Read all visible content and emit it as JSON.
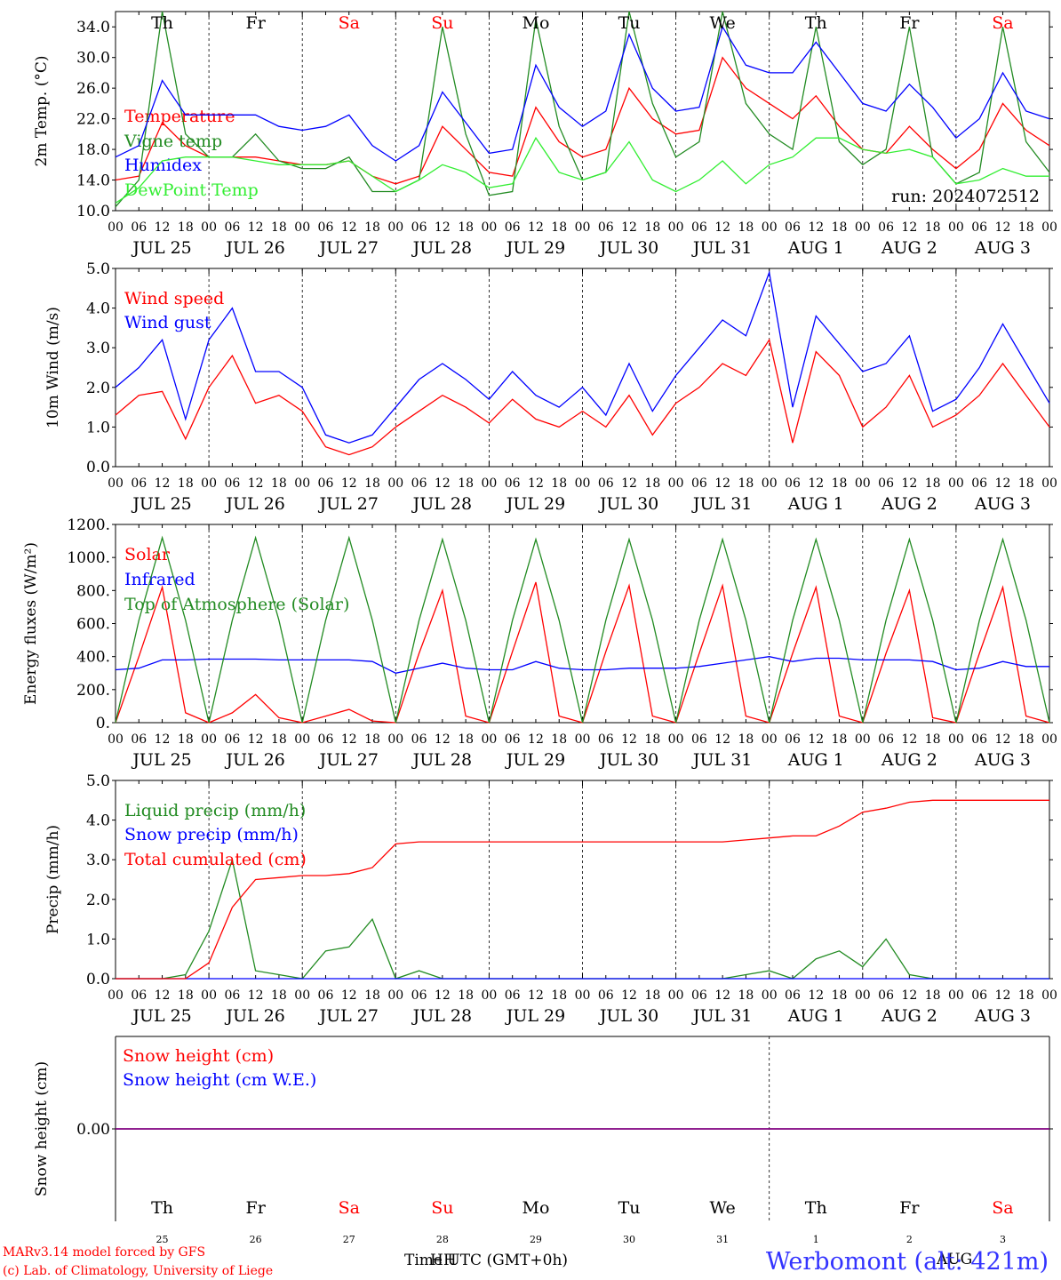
{
  "run_label": "run: 2024072512",
  "footer": {
    "model_line1": "MARv3.14 model forced by GFS",
    "model_line2": "(c) Lab. of Climatology, University of Liege",
    "xlabel": "Time UTC (GMT+0h)",
    "overlap_text": "HH",
    "overlap_text2": "AUG",
    "station": "Werbomont (alt: 421m)"
  },
  "days": [
    {
      "name": "Th",
      "date": "JUL 25",
      "num": "25",
      "weekend": false
    },
    {
      "name": "Fr",
      "date": "JUL 26",
      "num": "26",
      "weekend": false
    },
    {
      "name": "Sa",
      "date": "JUL 27",
      "num": "27",
      "weekend": true
    },
    {
      "name": "Su",
      "date": "JUL 28",
      "num": "28",
      "weekend": true
    },
    {
      "name": "Mo",
      "date": "JUL 29",
      "num": "29",
      "weekend": false
    },
    {
      "name": "Tu",
      "date": "JUL 30",
      "num": "30",
      "weekend": false
    },
    {
      "name": "We",
      "date": "JUL 31",
      "num": "31",
      "weekend": false
    },
    {
      "name": "Th",
      "date": "AUG  1",
      "num": "1",
      "weekend": false
    },
    {
      "name": "Fr",
      "date": "AUG  2",
      "num": "2",
      "weekend": false
    },
    {
      "name": "Sa",
      "date": "AUG  3",
      "num": "3",
      "weekend": true
    }
  ],
  "hour_labels": [
    "00",
    "06",
    "12",
    "18"
  ],
  "colors": {
    "red": "#ff0000",
    "green": "#228b22",
    "blue": "#0000ff",
    "lightgreen": "#33ee33",
    "purple": "#800080"
  },
  "chart_data": [
    {
      "type": "line",
      "ylabel": "2m Temp. (°C)",
      "ylim": [
        10,
        36
      ],
      "ticks": [
        "10.0",
        "14.0",
        "18.0",
        "22.0",
        "26.0",
        "30.0",
        "34.0"
      ],
      "x_hours": [
        0,
        6,
        12,
        18,
        24,
        30,
        36,
        42,
        48,
        54,
        60,
        66,
        72,
        78,
        84,
        90,
        96,
        102,
        108,
        114,
        120,
        126,
        132,
        138,
        144,
        150,
        156,
        162,
        168,
        174,
        180,
        186,
        192,
        198,
        204,
        210,
        216,
        222,
        228,
        234,
        240
      ],
      "series": [
        {
          "name": "Temperature",
          "color": "red",
          "values": [
            14.0,
            14.5,
            21.5,
            18.5,
            17.0,
            17.0,
            17.0,
            16.5,
            16.0,
            16.0,
            16.5,
            14.5,
            13.5,
            14.5,
            21.0,
            18.0,
            15.0,
            14.5,
            23.5,
            19.0,
            17.0,
            18.0,
            26.0,
            22.0,
            20.0,
            20.5,
            30.0,
            26.0,
            24.0,
            22.0,
            25.0,
            21.0,
            18.0,
            17.5,
            21.0,
            18.0,
            15.5,
            18.0,
            24.0,
            20.5,
            18.5
          ]
        },
        {
          "name": "Vigne temp",
          "color": "green",
          "values": [
            10.5,
            14.0,
            36.0,
            20.0,
            17.0,
            17.0,
            20.0,
            16.5,
            15.5,
            15.5,
            17.0,
            12.5,
            12.5,
            14.0,
            34.0,
            20.0,
            12.0,
            12.5,
            35.0,
            21.0,
            14.0,
            15.0,
            36.0,
            24.0,
            17.0,
            19.0,
            36.0,
            24.0,
            20.0,
            18.0,
            34.0,
            19.0,
            16.0,
            18.0,
            34.0,
            17.0,
            13.5,
            15.0,
            34.0,
            19.0,
            15.0
          ]
        },
        {
          "name": "Humidex",
          "color": "blue",
          "values": [
            17.0,
            18.5,
            27.0,
            22.5,
            22.5,
            22.5,
            22.5,
            21.0,
            20.5,
            21.0,
            22.5,
            18.5,
            16.5,
            18.5,
            25.5,
            21.5,
            17.5,
            18.0,
            29.0,
            23.5,
            21.0,
            23.0,
            33.0,
            26.0,
            23.0,
            23.5,
            34.0,
            29.0,
            28.0,
            28.0,
            32.0,
            28.0,
            24.0,
            23.0,
            26.5,
            23.5,
            19.5,
            22.0,
            28.0,
            23.0,
            22.0
          ]
        },
        {
          "name": "DewPoint Temp",
          "color": "lightgreen",
          "values": [
            11.0,
            13.0,
            16.5,
            17.0,
            17.0,
            17.0,
            16.5,
            16.0,
            16.0,
            16.0,
            16.5,
            14.5,
            12.5,
            14.0,
            16.0,
            15.0,
            13.0,
            13.5,
            19.5,
            15.0,
            14.0,
            15.0,
            19.0,
            14.0,
            12.5,
            14.0,
            16.5,
            13.5,
            16.0,
            17.0,
            19.5,
            19.5,
            18.0,
            17.5,
            18.0,
            17.0,
            13.5,
            14.0,
            15.5,
            14.5,
            14.5
          ]
        }
      ]
    },
    {
      "type": "line",
      "ylabel": "10m Wind (m/s)",
      "ylim": [
        0,
        5
      ],
      "ticks": [
        "0.0",
        "1.0",
        "2.0",
        "3.0",
        "4.0",
        "5.0"
      ],
      "x_hours": [
        0,
        6,
        12,
        18,
        24,
        30,
        36,
        42,
        48,
        54,
        60,
        66,
        72,
        78,
        84,
        90,
        96,
        102,
        108,
        114,
        120,
        126,
        132,
        138,
        144,
        150,
        156,
        162,
        168,
        174,
        180,
        186,
        192,
        198,
        204,
        210,
        216,
        222,
        228,
        234,
        240
      ],
      "series": [
        {
          "name": "Wind speed",
          "color": "red",
          "values": [
            1.3,
            1.8,
            1.9,
            0.7,
            2.0,
            2.8,
            1.6,
            1.8,
            1.4,
            0.5,
            0.3,
            0.5,
            1.0,
            1.4,
            1.8,
            1.5,
            1.1,
            1.7,
            1.2,
            1.0,
            1.4,
            1.0,
            1.8,
            0.8,
            1.6,
            2.0,
            2.6,
            2.3,
            3.2,
            0.6,
            2.9,
            2.3,
            1.0,
            1.5,
            2.3,
            1.0,
            1.3,
            1.8,
            2.6,
            1.8,
            1.0
          ]
        },
        {
          "name": "Wind gust",
          "color": "blue",
          "values": [
            2.0,
            2.5,
            3.2,
            1.2,
            3.2,
            4.0,
            2.4,
            2.4,
            2.0,
            0.8,
            0.6,
            0.8,
            1.5,
            2.2,
            2.6,
            2.2,
            1.7,
            2.4,
            1.8,
            1.5,
            2.0,
            1.3,
            2.6,
            1.4,
            2.3,
            3.0,
            3.7,
            3.3,
            4.9,
            1.5,
            3.8,
            3.1,
            2.4,
            2.6,
            3.3,
            1.4,
            1.7,
            2.5,
            3.6,
            2.6,
            1.6
          ]
        }
      ]
    },
    {
      "type": "line",
      "ylabel": "Energy fluxes (W/m²)",
      "ylim": [
        0,
        1200
      ],
      "ticks": [
        "0.",
        "200.",
        "400.",
        "600.",
        "800.",
        "1000.",
        "1200."
      ],
      "x_hours": [
        0,
        6,
        12,
        18,
        24,
        30,
        36,
        42,
        48,
        54,
        60,
        66,
        72,
        78,
        84,
        90,
        96,
        102,
        108,
        114,
        120,
        126,
        132,
        138,
        144,
        150,
        156,
        162,
        168,
        174,
        180,
        186,
        192,
        198,
        204,
        210,
        216,
        222,
        228,
        234,
        240
      ],
      "series": [
        {
          "name": "Solar",
          "color": "red",
          "values": [
            0,
            400,
            820,
            60,
            0,
            60,
            170,
            30,
            0,
            40,
            80,
            10,
            0,
            420,
            800,
            40,
            0,
            430,
            850,
            40,
            0,
            430,
            830,
            40,
            0,
            420,
            830,
            40,
            0,
            420,
            820,
            40,
            0,
            420,
            800,
            30,
            0,
            420,
            820,
            40,
            0
          ]
        },
        {
          "name": "Infrared",
          "color": "blue",
          "values": [
            320,
            330,
            380,
            380,
            385,
            385,
            385,
            380,
            380,
            380,
            380,
            370,
            300,
            330,
            360,
            330,
            320,
            320,
            370,
            330,
            320,
            320,
            330,
            330,
            330,
            340,
            360,
            380,
            400,
            370,
            390,
            390,
            380,
            380,
            380,
            370,
            320,
            330,
            370,
            340,
            340
          ]
        },
        {
          "name": "Top of Atmosphere (Solar)",
          "color": "green",
          "values": [
            0,
            620,
            1120,
            620,
            0,
            620,
            1120,
            620,
            0,
            620,
            1120,
            620,
            0,
            620,
            1110,
            620,
            0,
            620,
            1110,
            620,
            0,
            620,
            1110,
            620,
            0,
            620,
            1110,
            620,
            0,
            620,
            1110,
            620,
            0,
            620,
            1110,
            620,
            0,
            620,
            1110,
            620,
            0
          ]
        }
      ]
    },
    {
      "type": "line",
      "ylabel": "Precip (mm/h)",
      "ylim": [
        0,
        5
      ],
      "ticks": [
        "0.0",
        "1.0",
        "2.0",
        "3.0",
        "4.0",
        "5.0"
      ],
      "x_hours": [
        0,
        6,
        12,
        18,
        24,
        30,
        36,
        42,
        48,
        54,
        60,
        66,
        72,
        78,
        84,
        90,
        96,
        102,
        108,
        114,
        120,
        126,
        132,
        138,
        144,
        150,
        156,
        162,
        168,
        174,
        180,
        186,
        192,
        198,
        204,
        210,
        216,
        222,
        228,
        234,
        240
      ],
      "series": [
        {
          "name": "Liquid precip (mm/h)",
          "color": "green",
          "values": [
            0,
            0,
            0,
            0.1,
            1.2,
            3.0,
            0.2,
            0.1,
            0,
            0.7,
            0.8,
            1.5,
            0,
            0.2,
            0,
            0,
            0,
            0,
            0,
            0,
            0,
            0,
            0,
            0,
            0,
            0,
            0,
            0.1,
            0.2,
            0,
            0.5,
            0.7,
            0.3,
            1.0,
            0.1,
            0,
            0,
            0,
            0,
            0,
            0
          ]
        },
        {
          "name": "Snow precip (mm/h)",
          "color": "blue",
          "values": [
            0,
            0,
            0,
            0,
            0,
            0,
            0,
            0,
            0,
            0,
            0,
            0,
            0,
            0,
            0,
            0,
            0,
            0,
            0,
            0,
            0,
            0,
            0,
            0,
            0,
            0,
            0,
            0,
            0,
            0,
            0,
            0,
            0,
            0,
            0,
            0,
            0,
            0,
            0,
            0,
            0
          ]
        },
        {
          "name": "Total cumulated (cm)",
          "color": "red",
          "values": [
            0,
            0,
            0,
            0,
            0.4,
            1.8,
            2.5,
            2.55,
            2.6,
            2.6,
            2.65,
            2.8,
            3.4,
            3.45,
            3.45,
            3.45,
            3.45,
            3.45,
            3.45,
            3.45,
            3.45,
            3.45,
            3.45,
            3.45,
            3.45,
            3.45,
            3.45,
            3.5,
            3.55,
            3.6,
            3.6,
            3.85,
            4.2,
            4.3,
            4.45,
            4.5,
            4.5,
            4.5,
            4.5,
            4.5,
            4.5
          ]
        }
      ]
    },
    {
      "type": "line",
      "ylabel": "Snow height (cm)",
      "ylim": [
        -1,
        1
      ],
      "ticks": [
        "0.00"
      ],
      "x_hours": [
        0,
        240
      ],
      "series": [
        {
          "name": "Snow height (cm)",
          "color": "red",
          "values": [
            0,
            0
          ]
        },
        {
          "name": "Snow height (cm W.E.)",
          "color": "blue",
          "values": [
            0,
            0
          ]
        }
      ]
    }
  ]
}
